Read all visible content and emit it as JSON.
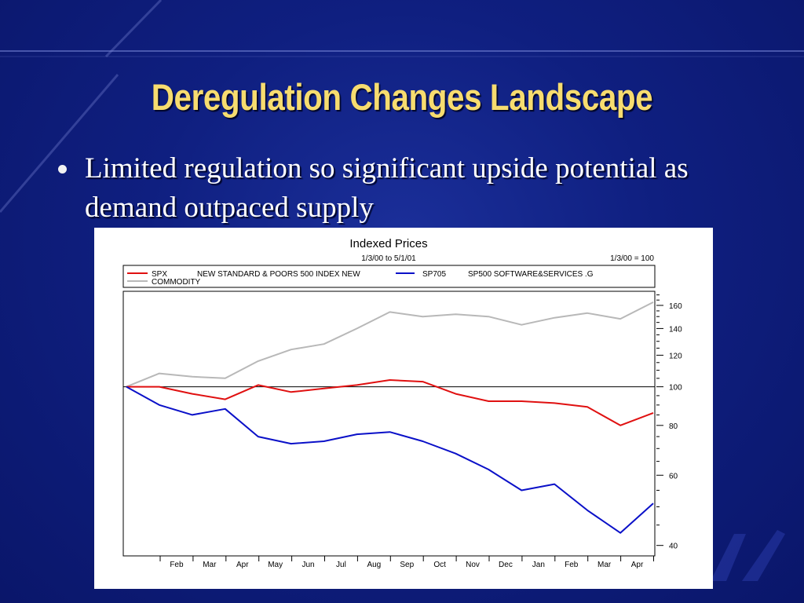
{
  "slide": {
    "title": "Deregulation Changes Landscape",
    "bullet": "Limited regulation so significant upside potential as demand outpaced supply"
  },
  "colors": {
    "background": "#0f1f80",
    "title": "#f7dc6f",
    "spx": "#e01010",
    "sp705": "#0a10c8",
    "commodity": "#b8b8b8"
  },
  "chart_data": {
    "type": "line",
    "title": "Indexed Prices",
    "subtitle": "1/3/00 to 5/1/01",
    "note": "1/3/00 = 100",
    "x_months": [
      "Feb",
      "Mar",
      "Apr",
      "May",
      "Jun",
      "Jul",
      "Aug",
      "Sep",
      "Oct",
      "Nov",
      "Dec",
      "Jan",
      "Feb",
      "Mar",
      "Apr"
    ],
    "y_ticks": [
      40,
      60,
      80,
      100,
      120,
      140,
      160
    ],
    "y_scale": "log",
    "ylim": [
      38,
      172
    ],
    "reference_line": 100,
    "x": [
      0,
      1,
      2,
      3,
      4,
      5,
      6,
      7,
      8,
      9,
      10,
      11,
      12,
      13,
      14,
      15,
      16
    ],
    "series": [
      {
        "key": "spx",
        "ticker": "SPX",
        "name": "NEW STANDARD & POORS 500 INDEX NEW",
        "color": "#e01010",
        "values": [
          100,
          100,
          96,
          93,
          101,
          97,
          99,
          101,
          104,
          103,
          96,
          92,
          92,
          91,
          89,
          80,
          86
        ]
      },
      {
        "key": "sp705",
        "ticker": "SP705",
        "name": "SP500 SOFTWARE&SERVICES .G",
        "color": "#0a10c8",
        "values": [
          100,
          90,
          85,
          88,
          75,
          72,
          73,
          76,
          77,
          73,
          68,
          62,
          55,
          57,
          49,
          43,
          51
        ]
      },
      {
        "key": "commodity",
        "ticker": "",
        "name": "COMMODITY",
        "color": "#b8b8b8",
        "values": [
          100,
          108,
          106,
          105,
          116,
          124,
          128,
          140,
          154,
          150,
          152,
          150,
          143,
          149,
          153,
          148,
          163
        ]
      }
    ]
  }
}
